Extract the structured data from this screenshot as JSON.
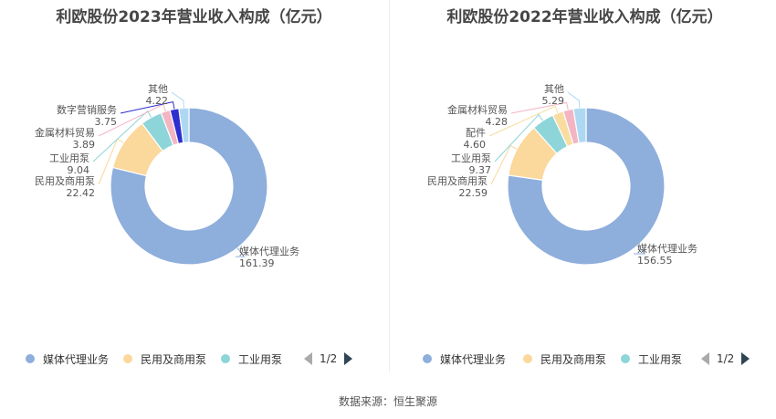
{
  "colors": {
    "palette": [
      "#8eaedc",
      "#fbd89b",
      "#8dd5d8",
      "#f3b5c3",
      "#d5b9e4",
      "#2f2fd0",
      "#aed8f2"
    ],
    "title": "#464646",
    "pager_active": "#2f4554",
    "pager_inactive": "#aaaaaa"
  },
  "chart_data": [
    {
      "type": "pie",
      "title": "利欧股份2023年营业收入构成（亿元）",
      "slices": [
        {
          "name": "媒体代理业务",
          "value": 161.39,
          "value_label": "161.39",
          "color": "#8eaedc"
        },
        {
          "name": "民用及商用泵",
          "value": 22.42,
          "value_label": "22.42",
          "color": "#fbd89b"
        },
        {
          "name": "工业用泵",
          "value": 9.04,
          "value_label": "9.04",
          "color": "#8dd5d8"
        },
        {
          "name": "金属材料贸易",
          "value": 3.89,
          "value_label": "3.89",
          "color": "#f3b5c3"
        },
        {
          "name": "数字营销服务",
          "value": 3.75,
          "value_label": "3.75",
          "color": "#2f2fd0"
        },
        {
          "name": "其他",
          "value": 4.22,
          "value_label": "4.22",
          "color": "#aed8f2"
        }
      ],
      "legend": {
        "items": [
          "媒体代理业务",
          "民用及商用泵",
          "工业用泵"
        ],
        "colors": [
          "#8eaedc",
          "#fbd89b",
          "#8dd5d8"
        ],
        "page": "1/2",
        "position": "bottom"
      }
    },
    {
      "type": "pie",
      "title": "利欧股份2022年营业收入构成（亿元）",
      "slices": [
        {
          "name": "媒体代理业务",
          "value": 156.55,
          "value_label": "156.55",
          "color": "#8eaedc"
        },
        {
          "name": "民用及商用泵",
          "value": 22.59,
          "value_label": "22.59",
          "color": "#fbd89b"
        },
        {
          "name": "工业用泵",
          "value": 9.37,
          "value_label": "9.37",
          "color": "#8dd5d8"
        },
        {
          "name": "配件",
          "value": 4.6,
          "value_label": "4.60",
          "color": "#f9dca0"
        },
        {
          "name": "金属材料贸易",
          "value": 4.28,
          "value_label": "4.28",
          "color": "#f3b5c3"
        },
        {
          "name": "其他",
          "value": 5.29,
          "value_label": "5.29",
          "color": "#aed8f2"
        }
      ],
      "legend": {
        "items": [
          "媒体代理业务",
          "民用及商用泵",
          "工业用泵"
        ],
        "colors": [
          "#8eaedc",
          "#fbd89b",
          "#8dd5d8"
        ],
        "page": "1/2",
        "position": "bottom"
      }
    }
  ],
  "footer": {
    "source": "数据来源：恒生聚源"
  }
}
